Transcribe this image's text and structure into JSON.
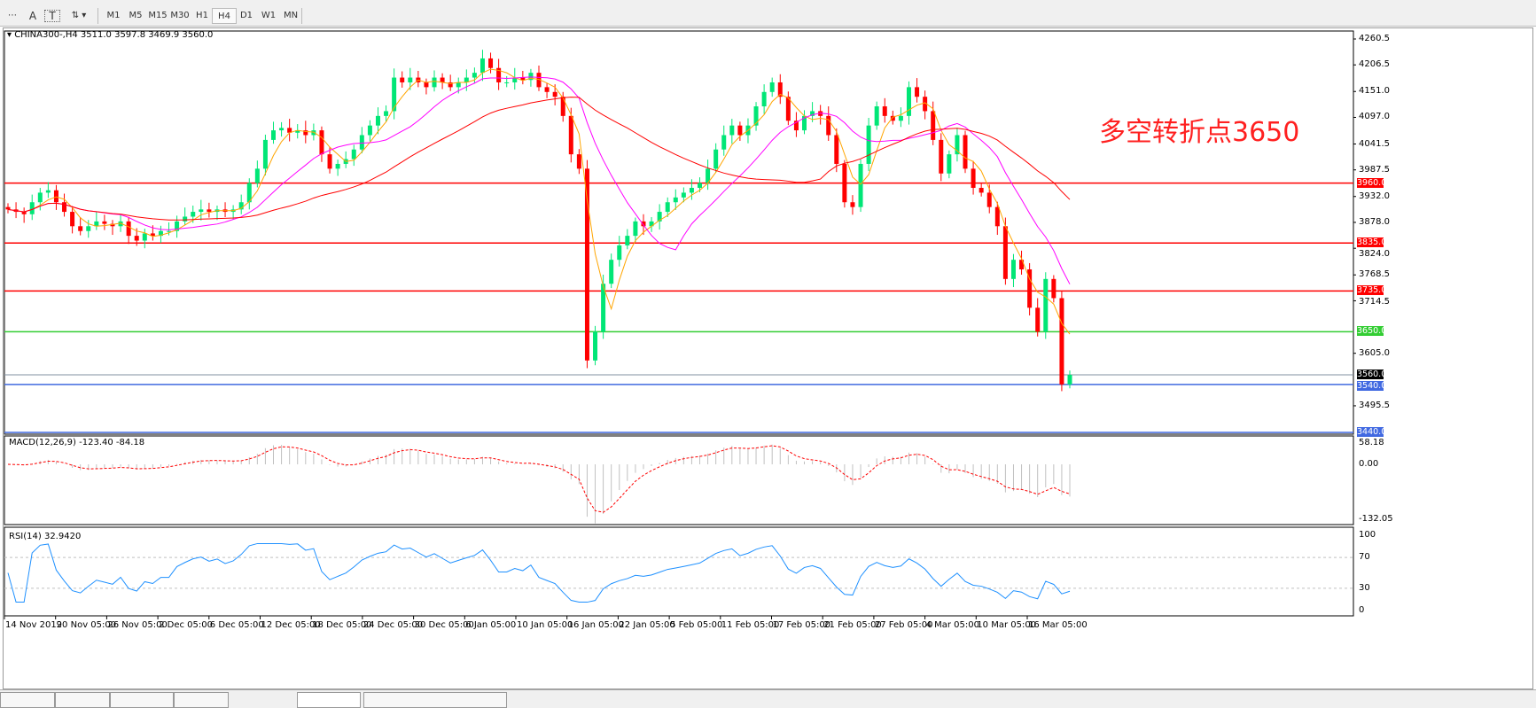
{
  "toolbar": {
    "tools": [
      {
        "icon": "grid-menu-icon"
      },
      {
        "label": "A",
        "icon": "text-icon"
      },
      {
        "label": "T",
        "icon": "text-label-icon"
      },
      {
        "icon": "arrows-icon"
      }
    ],
    "timeframes": [
      "M1",
      "M5",
      "M15",
      "M30",
      "H1",
      "H4",
      "D1",
      "W1",
      "MN"
    ],
    "active_timeframe": "H4"
  },
  "chart": {
    "legend": "CHINA300-,H4  3511.0 3597.8 3469.9 3560.0",
    "annotation": "多空转折点3650",
    "price_ticks": [
      "4260.5",
      "4206.5",
      "4151.0",
      "4097.0",
      "4041.5",
      "3987.5",
      "3932.0",
      "3878.0",
      "3824.0",
      "3768.5",
      "3714.5",
      "3605.0",
      "3495.5"
    ],
    "levels": [
      {
        "value": "3960.0",
        "color": "#ff0000"
      },
      {
        "value": "3835.0",
        "color": "#ff0000"
      },
      {
        "value": "3735.0",
        "color": "#ff0000"
      },
      {
        "value": "3650.0",
        "color": "#32cd32"
      },
      {
        "value": "3560.0",
        "color": "#000000",
        "line": "#8090a0"
      },
      {
        "value": "3540.0",
        "color": "#4169e1"
      },
      {
        "value": "3440.0",
        "color": "#4169e1"
      }
    ],
    "colors": {
      "bull": "#00e676",
      "bear": "#ff0000",
      "ma_fast": "#ffa500",
      "ma_mid": "#ff00ff",
      "ma_slow": "#ff0000",
      "rsi": "#1e90ff"
    },
    "time_labels": [
      "14 Nov 2019",
      "20 Nov 05:00",
      "26 Nov 05:00",
      "2 Dec 05:00",
      "6 Dec 05:00",
      "12 Dec 05:00",
      "18 Dec 05:00",
      "24 Dec 05:00",
      "30 Dec 05:00",
      "6 Jan 05:00",
      "10 Jan 05:00",
      "16 Jan 05:00",
      "22 Jan 05:00",
      "5 Feb 05:00",
      "11 Feb 05:00",
      "17 Feb 05:00",
      "21 Feb 05:00",
      "27 Feb 05:00",
      "4 Mar 05:00",
      "10 Mar 05:00",
      "16 Mar 05:00"
    ]
  },
  "macd": {
    "label": "MACD(12,26,9) -123.40 -84.18",
    "ticks": [
      "58.18",
      "0.00",
      "-132.05"
    ]
  },
  "rsi": {
    "label": "RSI(14) 32.9420",
    "ticks": [
      "100",
      "70",
      "30",
      "0"
    ]
  },
  "chart_data": {
    "type": "candlestick",
    "symbol": "CHINA300-",
    "timeframe": "H4",
    "ylim": [
      3440,
      4260.5
    ],
    "closes": [
      3905,
      3900,
      3895,
      3920,
      3940,
      3945,
      3920,
      3900,
      3870,
      3860,
      3870,
      3880,
      3875,
      3870,
      3880,
      3850,
      3840,
      3855,
      3850,
      3860,
      3860,
      3880,
      3890,
      3900,
      3905,
      3900,
      3905,
      3900,
      3905,
      3920,
      3960,
      3990,
      4050,
      4070,
      4075,
      4065,
      4070,
      4060,
      4070,
      4020,
      3990,
      4000,
      4010,
      4030,
      4060,
      4080,
      4100,
      4110,
      4180,
      4170,
      4180,
      4170,
      4160,
      4180,
      4170,
      4160,
      4170,
      4180,
      4190,
      4220,
      4200,
      4170,
      4170,
      4180,
      4175,
      4190,
      4160,
      4150,
      4140,
      4100,
      4020,
      3990,
      3590,
      3650,
      3750,
      3800,
      3830,
      3850,
      3880,
      3870,
      3880,
      3900,
      3920,
      3930,
      3940,
      3950,
      3960,
      3990,
      4030,
      4060,
      4080,
      4060,
      4080,
      4120,
      4150,
      4170,
      4140,
      4090,
      4070,
      4100,
      4110,
      4100,
      4060,
      4000,
      3920,
      3910,
      4000,
      4080,
      4120,
      4100,
      4090,
      4100,
      4160,
      4140,
      4110,
      4050,
      3980,
      4020,
      4060,
      3990,
      3950,
      3940,
      3910,
      3870,
      3760,
      3800,
      3780,
      3700,
      3650,
      3760,
      3720,
      3540,
      3560
    ]
  }
}
